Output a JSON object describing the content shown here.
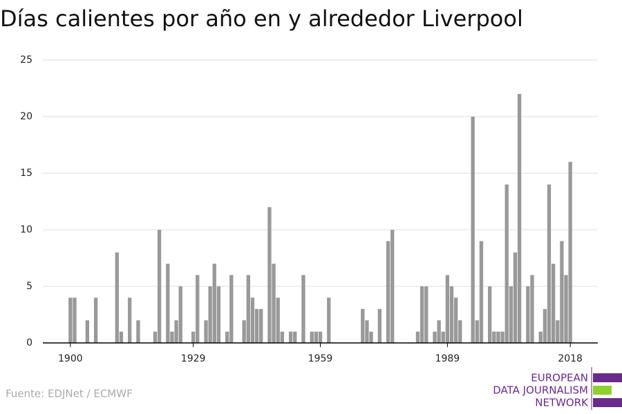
{
  "chart_data": {
    "type": "bar",
    "title": "Días calientes por año en y alrededor Liverpool",
    "source": "Fuente: EDJNet / ECMWF",
    "color": "#999999",
    "grid": true,
    "x": [
      1900,
      1901,
      1902,
      1903,
      1904,
      1905,
      1906,
      1907,
      1908,
      1909,
      1910,
      1911,
      1912,
      1913,
      1914,
      1915,
      1916,
      1917,
      1918,
      1919,
      1920,
      1921,
      1922,
      1923,
      1924,
      1925,
      1926,
      1927,
      1928,
      1929,
      1930,
      1931,
      1932,
      1933,
      1934,
      1935,
      1936,
      1937,
      1938,
      1939,
      1940,
      1941,
      1942,
      1943,
      1944,
      1945,
      1946,
      1947,
      1948,
      1949,
      1950,
      1951,
      1952,
      1953,
      1954,
      1955,
      1956,
      1957,
      1958,
      1959,
      1960,
      1961,
      1962,
      1963,
      1964,
      1965,
      1966,
      1967,
      1968,
      1969,
      1970,
      1971,
      1972,
      1973,
      1974,
      1975,
      1976,
      1977,
      1978,
      1979,
      1980,
      1981,
      1982,
      1983,
      1984,
      1985,
      1986,
      1987,
      1988,
      1989,
      1990,
      1991,
      1992,
      1993,
      1994,
      1995,
      1996,
      1997,
      1998,
      1999,
      2000,
      2001,
      2002,
      2003,
      2004,
      2005,
      2006,
      2007,
      2008,
      2009,
      2010,
      2011,
      2012,
      2013,
      2014,
      2015,
      2016,
      2017,
      2018
    ],
    "values": [
      4,
      4,
      0,
      0,
      2,
      0,
      4,
      0,
      0,
      0,
      0,
      8,
      1,
      0,
      4,
      0,
      2,
      0,
      0,
      0,
      1,
      10,
      0,
      7,
      1,
      2,
      5,
      0,
      0,
      1,
      6,
      0,
      2,
      5,
      7,
      5,
      0,
      1,
      6,
      0,
      0,
      2,
      6,
      4,
      3,
      3,
      0,
      12,
      7,
      4,
      1,
      0,
      1,
      1,
      0,
      6,
      0,
      1,
      1,
      1,
      0,
      4,
      0,
      0,
      0,
      0,
      0,
      0,
      0,
      3,
      2,
      1,
      0,
      3,
      0,
      9,
      10,
      0,
      0,
      0,
      0,
      0,
      1,
      5,
      5,
      0,
      1,
      2,
      1,
      6,
      5,
      4,
      2,
      0,
      0,
      20,
      2,
      9,
      0,
      5,
      1,
      1,
      1,
      14,
      5,
      8,
      22,
      0,
      5,
      6,
      0,
      1,
      3,
      14,
      7,
      2,
      9,
      6,
      16
    ],
    "xlim": [
      1893.5,
      2024.5
    ],
    "xticks": [
      1900,
      1929,
      1959,
      1989,
      2018
    ],
    "ylim": [
      0,
      25
    ],
    "yticks": [
      0,
      5,
      10,
      15,
      20,
      25
    ]
  },
  "logo": {
    "lines": [
      "EUROPEAN",
      "DATA JOURNALISM",
      "NETWORK"
    ]
  }
}
